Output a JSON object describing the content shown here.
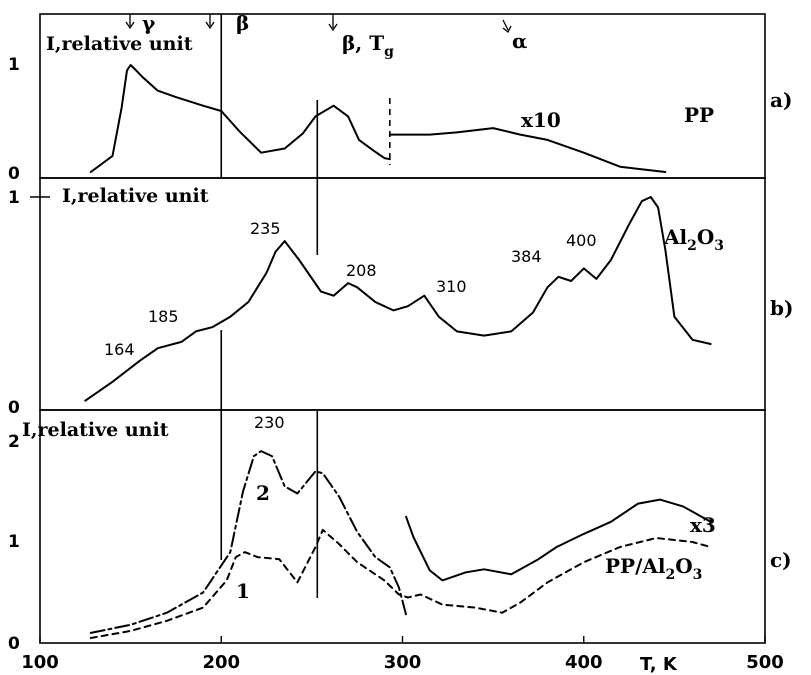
{
  "chart_data": [
    {
      "panel": "a)",
      "type": "line",
      "ylabel": "I,relative unit",
      "ylim": [
        0,
        1.45
      ],
      "yticks": [
        "0",
        "1"
      ],
      "xlim": [
        100,
        500
      ],
      "markers": [
        {
          "label": "γ",
          "x": 150
        },
        {
          "label": "β",
          "x": 200
        },
        {
          "label": "β, T",
          "sub": "g",
          "x": 260
        },
        {
          "label": "α",
          "x": 360
        }
      ],
      "vlines": [
        200,
        253
      ],
      "dashed_vline": 293,
      "annotations": [
        "x10",
        "PP"
      ],
      "series": [
        {
          "points": [
            [
              128,
              0
            ],
            [
              140,
              0.15
            ],
            [
              145,
              0.6
            ],
            [
              148,
              0.95
            ],
            [
              150,
              1.0
            ],
            [
              153,
              0.95
            ],
            [
              157,
              0.88
            ],
            [
              165,
              0.76
            ],
            [
              175,
              0.7
            ],
            [
              190,
              0.62
            ],
            [
              200,
              0.57
            ],
            [
              210,
              0.38
            ],
            [
              222,
              0.18
            ],
            [
              235,
              0.22
            ],
            [
              245,
              0.36
            ],
            [
              252,
              0.52
            ],
            [
              262,
              0.62
            ],
            [
              270,
              0.52
            ],
            [
              276,
              0.3
            ],
            [
              284,
              0.2
            ],
            [
              290,
              0.13
            ],
            [
              293,
              0.12
            ]
          ]
        },
        {
          "points": [
            [
              293,
              0.35
            ],
            [
              315,
              0.35
            ],
            [
              330,
              0.37
            ],
            [
              350,
              0.41
            ],
            [
              365,
              0.35
            ],
            [
              380,
              0.3
            ],
            [
              400,
              0.18
            ],
            [
              420,
              0.05
            ],
            [
              445,
              0
            ]
          ]
        }
      ]
    },
    {
      "panel": "b)",
      "type": "line",
      "ylabel": "I,relative unit",
      "ylim": [
        0,
        1.05
      ],
      "yticks": [
        "0",
        "1"
      ],
      "xlim": [
        100,
        500
      ],
      "vlines": [
        200,
        253
      ],
      "annotations": [
        "Al",
        "2",
        "O",
        "3"
      ],
      "peak_labels": [
        "164",
        "185",
        "235",
        "208",
        "310",
        "384",
        "400"
      ],
      "series": [
        {
          "points": [
            [
              125,
              0.03
            ],
            [
              140,
              0.12
            ],
            [
              155,
              0.22
            ],
            [
              165,
              0.28
            ],
            [
              178,
              0.31
            ],
            [
              186,
              0.36
            ],
            [
              195,
              0.38
            ],
            [
              205,
              0.43
            ],
            [
              215,
              0.5
            ],
            [
              225,
              0.64
            ],
            [
              230,
              0.74
            ],
            [
              235,
              0.79
            ],
            [
              243,
              0.7
            ],
            [
              255,
              0.55
            ],
            [
              262,
              0.53
            ],
            [
              270,
              0.59
            ],
            [
              275,
              0.57
            ],
            [
              285,
              0.5
            ],
            [
              295,
              0.46
            ],
            [
              303,
              0.48
            ],
            [
              312,
              0.53
            ],
            [
              320,
              0.43
            ],
            [
              330,
              0.36
            ],
            [
              345,
              0.34
            ],
            [
              360,
              0.36
            ],
            [
              372,
              0.45
            ],
            [
              380,
              0.57
            ],
            [
              386,
              0.62
            ],
            [
              393,
              0.6
            ],
            [
              400,
              0.66
            ],
            [
              407,
              0.61
            ],
            [
              415,
              0.7
            ],
            [
              425,
              0.87
            ],
            [
              432,
              0.98
            ],
            [
              437,
              1.0
            ],
            [
              441,
              0.95
            ],
            [
              445,
              0.75
            ],
            [
              450,
              0.43
            ],
            [
              460,
              0.32
            ],
            [
              470,
              0.3
            ]
          ]
        }
      ]
    },
    {
      "panel": "c)",
      "type": "line",
      "ylabel": "I,relative unit",
      "ylim": [
        0,
        2.25
      ],
      "yticks": [
        "0",
        "1",
        "2"
      ],
      "xlim": [
        100,
        500
      ],
      "xticks": [
        "100",
        "200",
        "300",
        "400",
        "500"
      ],
      "xlabel": "T, K",
      "vlines": [
        200,
        253
      ],
      "annotations": [
        "230",
        "2",
        "1",
        "x3",
        "PP/Al",
        "2",
        "O",
        "3"
      ],
      "series": [
        {
          "name": "2",
          "style": "dash-dot",
          "points": [
            [
              128,
              0.1
            ],
            [
              150,
              0.18
            ],
            [
              170,
              0.3
            ],
            [
              190,
              0.5
            ],
            [
              205,
              0.9
            ],
            [
              212,
              1.5
            ],
            [
              218,
              1.85
            ],
            [
              222,
              1.9
            ],
            [
              228,
              1.85
            ],
            [
              235,
              1.55
            ],
            [
              242,
              1.48
            ],
            [
              252,
              1.7
            ],
            [
              256,
              1.68
            ],
            [
              265,
              1.45
            ],
            [
              275,
              1.1
            ],
            [
              285,
              0.85
            ],
            [
              293,
              0.75
            ],
            [
              298,
              0.55
            ],
            [
              302,
              0.28
            ]
          ]
        },
        {
          "name": "x3",
          "style": "solid",
          "points": [
            [
              302,
              1.25
            ],
            [
              306,
              1.05
            ],
            [
              315,
              0.72
            ],
            [
              322,
              0.62
            ],
            [
              335,
              0.7
            ],
            [
              345,
              0.73
            ],
            [
              360,
              0.68
            ],
            [
              375,
              0.83
            ],
            [
              385,
              0.95
            ],
            [
              400,
              1.08
            ],
            [
              415,
              1.2
            ],
            [
              430,
              1.38
            ],
            [
              442,
              1.42
            ],
            [
              455,
              1.35
            ],
            [
              470,
              1.2
            ]
          ]
        },
        {
          "name": "1",
          "style": "dashed",
          "points": [
            [
              128,
              0.05
            ],
            [
              150,
              0.12
            ],
            [
              170,
              0.22
            ],
            [
              190,
              0.35
            ],
            [
              203,
              0.62
            ],
            [
              208,
              0.85
            ],
            [
              213,
              0.9
            ],
            [
              220,
              0.85
            ],
            [
              232,
              0.83
            ],
            [
              242,
              0.6
            ],
            [
              252,
              0.95
            ],
            [
              256,
              1.12
            ],
            [
              265,
              0.98
            ],
            [
              275,
              0.8
            ],
            [
              290,
              0.62
            ],
            [
              298,
              0.48
            ],
            [
              303,
              0.45
            ],
            [
              310,
              0.48
            ],
            [
              322,
              0.38
            ],
            [
              340,
              0.35
            ],
            [
              355,
              0.3
            ],
            [
              365,
              0.4
            ],
            [
              380,
              0.6
            ],
            [
              400,
              0.8
            ],
            [
              420,
              0.95
            ],
            [
              440,
              1.04
            ],
            [
              460,
              1.0
            ],
            [
              470,
              0.95
            ]
          ]
        }
      ]
    }
  ]
}
